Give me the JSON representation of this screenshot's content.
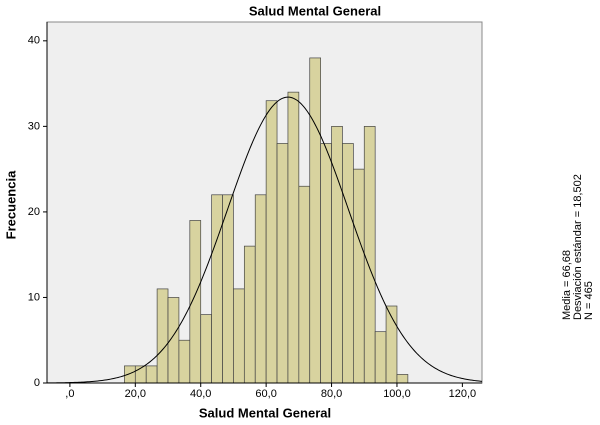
{
  "chart_data": {
    "type": "histogram",
    "title": "Salud Mental General",
    "x_label": "Salud Mental General",
    "y_label": "Frecuencia",
    "bins": [
      16.667,
      20,
      23.333,
      26.667,
      30,
      33.333,
      36.667,
      40,
      43.333,
      46.667,
      50,
      53.333,
      56.667,
      60,
      63.333,
      66.667,
      70,
      73.333,
      76.667,
      80,
      83.333,
      86.667,
      90,
      93.333,
      96.667,
      100,
      103.333
    ],
    "values": [
      2,
      2,
      2,
      11,
      10,
      5,
      19,
      8,
      22,
      22,
      11,
      16,
      22,
      33,
      28,
      34,
      23,
      38,
      28,
      30,
      28,
      25,
      30,
      6,
      9,
      1
    ],
    "color": "#d8d39f",
    "xlim": [
      -7,
      126
    ],
    "ylim": [
      0,
      42.2
    ],
    "xticks": [
      {
        "value": 0,
        "label": ",0"
      },
      {
        "value": 20,
        "label": "20,0"
      },
      {
        "value": 40,
        "label": "40,0"
      },
      {
        "value": 60,
        "label": "60,0"
      },
      {
        "value": 80,
        "label": "80,0"
      },
      {
        "value": 100,
        "label": "100,0"
      },
      {
        "value": 120,
        "label": "120,0"
      }
    ],
    "yticks": [
      0,
      10,
      20,
      30,
      40
    ],
    "normal_curve": {
      "mean": 66.68,
      "sd": 18.502,
      "n": 465,
      "color": "#000000"
    },
    "stats": [
      "Media = 66,68",
      "Desviación estándar = 18,502",
      "N = 465"
    ]
  }
}
